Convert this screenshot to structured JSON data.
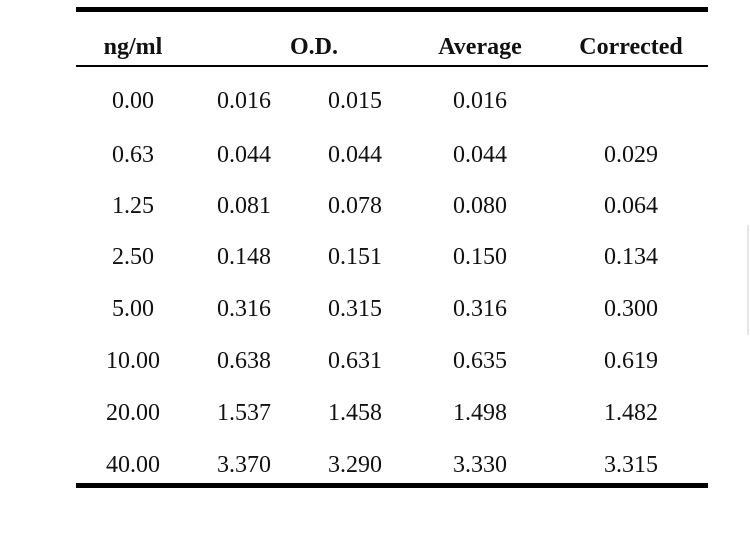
{
  "table": {
    "headers": [
      "ng/ml",
      "O.D.",
      "Average",
      "Corrected"
    ],
    "rows": [
      [
        "0.00",
        "0.016",
        "0.015",
        "0.016",
        ""
      ],
      [
        "0.63",
        "0.044",
        "0.044",
        "0.044",
        "0.029"
      ],
      [
        "1.25",
        "0.081",
        "0.078",
        "0.080",
        "0.064"
      ],
      [
        "2.50",
        "0.148",
        "0.151",
        "0.150",
        "0.134"
      ],
      [
        "5.00",
        "0.316",
        "0.315",
        "0.316",
        "0.300"
      ],
      [
        "10.00",
        "0.638",
        "0.631",
        "0.635",
        "0.619"
      ],
      [
        "20.00",
        "1.537",
        "1.458",
        "1.498",
        "1.482"
      ],
      [
        "40.00",
        "3.370",
        "3.290",
        "3.330",
        "3.315"
      ]
    ]
  }
}
